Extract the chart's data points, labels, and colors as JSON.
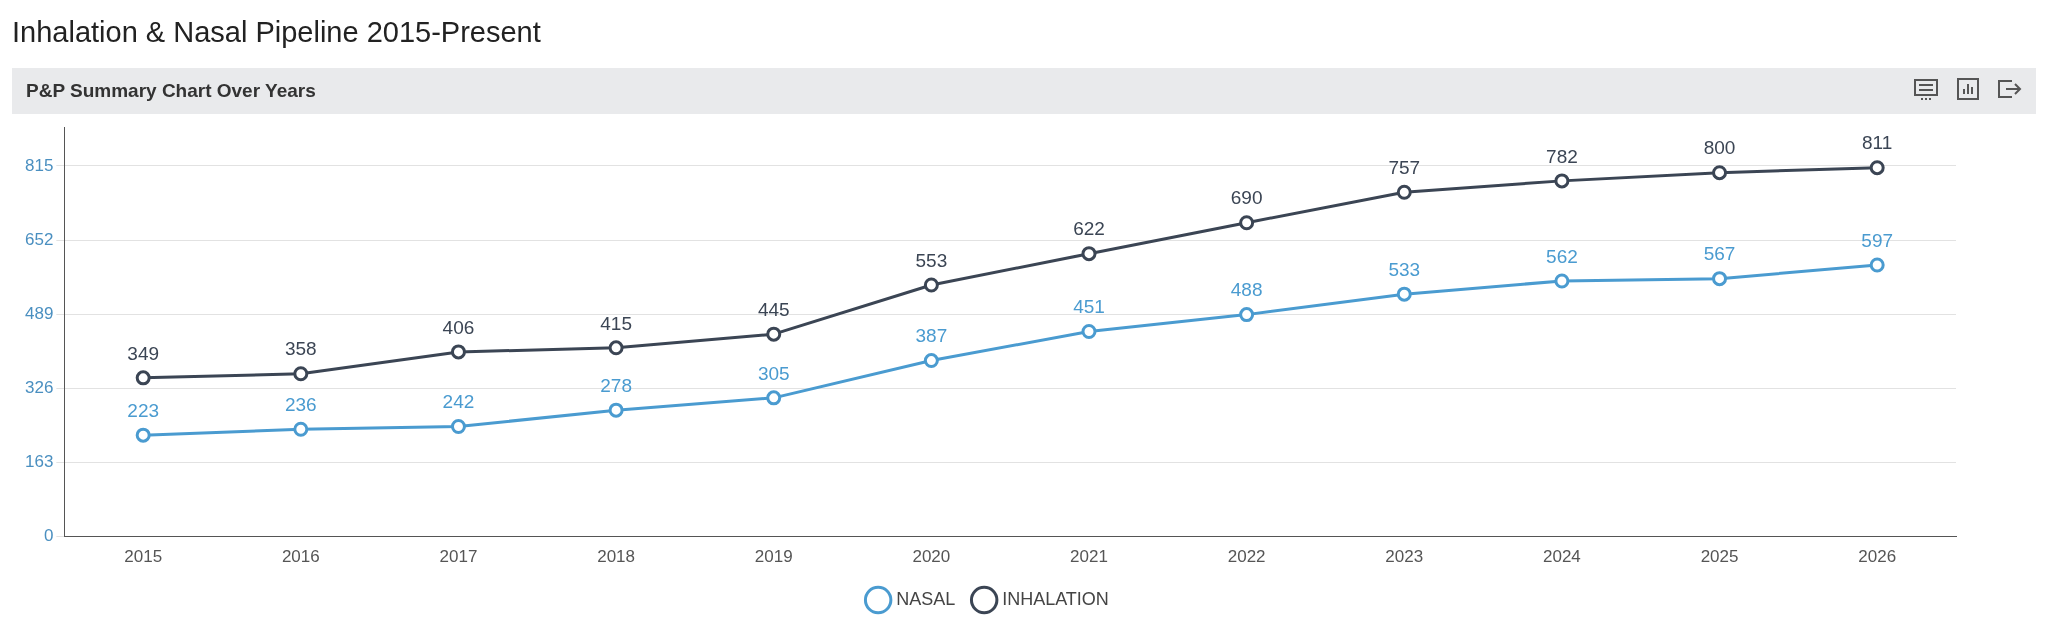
{
  "chart_data": {
    "type": "line",
    "title": "Inhalation & Nasal Pipeline 2015-Present",
    "subtitle": "P&P Summary Chart Over Years",
    "categories": [
      "2015",
      "2016",
      "2017",
      "2018",
      "2019",
      "2020",
      "2021",
      "2022",
      "2023",
      "2024",
      "2025",
      "2026"
    ],
    "series": [
      {
        "name": "NASAL",
        "color": "#4a9bd0",
        "values": [
          223,
          236,
          242,
          278,
          305,
          387,
          451,
          488,
          533,
          562,
          567,
          597
        ]
      },
      {
        "name": "INHALATION",
        "color": "#3b4554",
        "values": [
          349,
          358,
          406,
          415,
          445,
          553,
          622,
          690,
          757,
          782,
          800,
          811
        ]
      }
    ],
    "ylim": [
      0,
      900
    ],
    "yticks": [
      0,
      163,
      326,
      489,
      652,
      815
    ],
    "grid": "y",
    "legend": "bottom",
    "marker": "circle",
    "line_style": "solid",
    "data_labels": true
  }
}
